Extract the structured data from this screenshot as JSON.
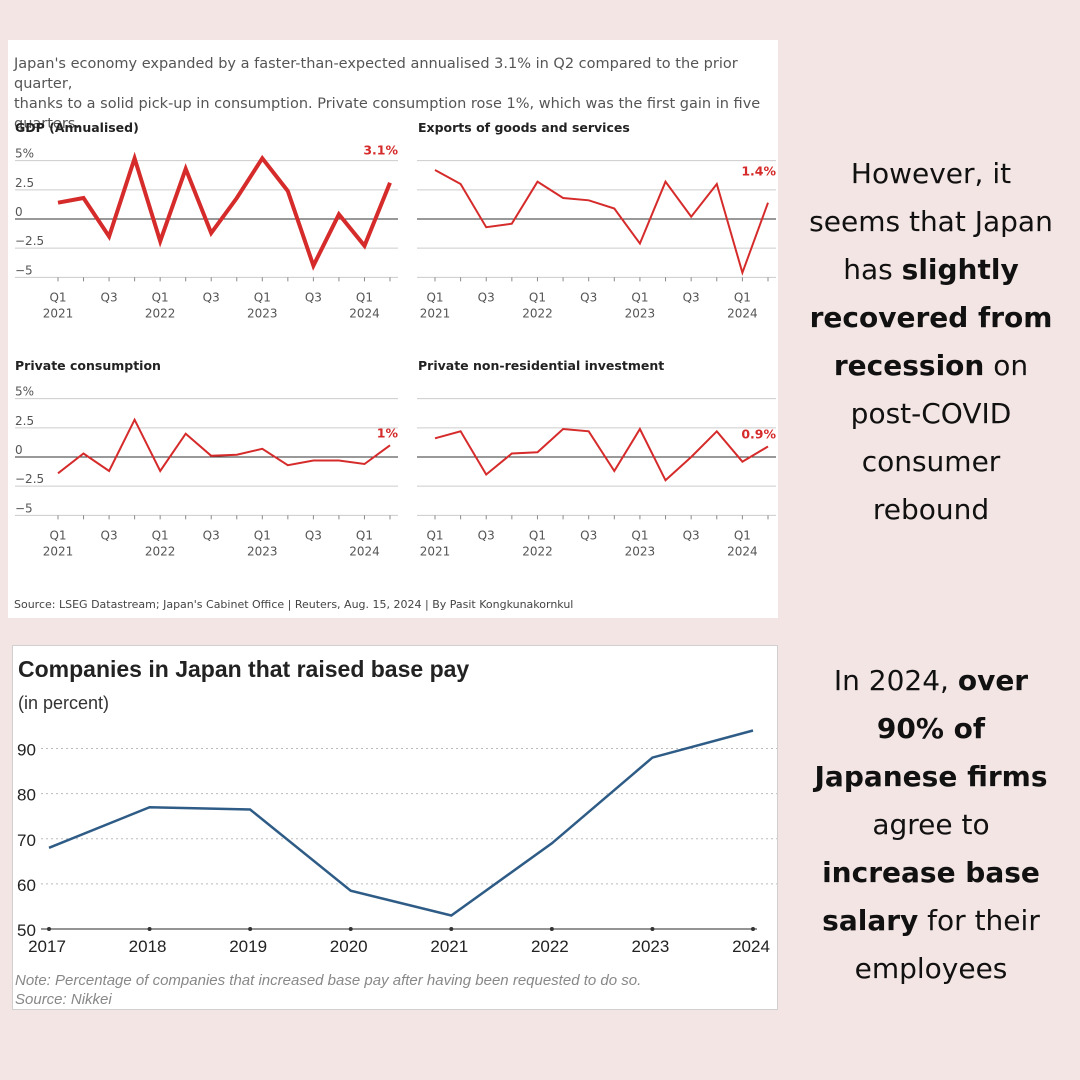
{
  "intro": {
    "line1": "Japan's economy expanded by a faster-than-expected annualised 3.1% in Q2 compared to the prior quarter,",
    "line2": "thanks to a solid pick-up in consumption. Private consumption rose 1%, which was the first gain in five quarters."
  },
  "source_top": "Source: LSEG Datastream; Japan's Cabinet Office | Reuters, Aug. 15, 2024 | By Pasit Kongkunakornkul",
  "side_1": [
    {
      "t": "However, it",
      "b": false
    },
    {
      "t": "seems that Japan",
      "b": false
    },
    {
      "t": "has ",
      "b": false,
      "next": "slightly"
    },
    {
      "t": "recovered from",
      "b": true
    },
    {
      "t": "recession",
      "b": true,
      "after": " on"
    },
    {
      "t": "post-COVID",
      "b": false
    },
    {
      "t": "consumer",
      "b": false
    },
    {
      "t": "rebound",
      "b": false
    }
  ],
  "side_2": [
    {
      "t": "In 2024, ",
      "b": false,
      "next": "over"
    },
    {
      "t": "90% of",
      "b": true
    },
    {
      "t": "Japanese firms",
      "b": true
    },
    {
      "t": "agree to",
      "b": false
    },
    {
      "t": "increase base",
      "b": true
    },
    {
      "t": "salary",
      "b": true,
      "after": " for their"
    },
    {
      "t": "employees",
      "b": false
    }
  ],
  "bottom": {
    "title": "Companies in Japan that raised base pay",
    "subtitle": "(in percent)",
    "note": "Note: Percentage of companies that increased base pay after having been requested to do so.",
    "source": "Source: Nikkei"
  },
  "colors": {
    "red": "#d62b2b",
    "blue": "#2e5c86",
    "background": "#f3e5e3"
  },
  "chart_data": [
    {
      "type": "line",
      "title": "GDP (Annualised)",
      "ylim": [
        -6,
        6
      ],
      "yticks": [
        "5%",
        "2.5",
        "0",
        "−2.5",
        "−5"
      ],
      "ytick_values": [
        5,
        2.5,
        0,
        -2.5,
        -5
      ],
      "x_tick_labels": [
        [
          "Q1",
          "2021"
        ],
        [
          "Q3",
          ""
        ],
        [
          "Q1",
          "2022"
        ],
        [
          "Q3",
          ""
        ],
        [
          "Q1",
          "2023"
        ],
        [
          "Q3",
          ""
        ],
        [
          "Q1",
          "2024"
        ]
      ],
      "values": [
        1.4,
        1.8,
        -1.5,
        5.2,
        -1.9,
        4.3,
        -1.2,
        1.8,
        5.2,
        2.4,
        -4.0,
        0.4,
        -2.3,
        3.1
      ],
      "end_label": "3.1%",
      "thick": true
    },
    {
      "type": "line",
      "title": "Exports of goods and services",
      "ylim": [
        -6,
        6
      ],
      "x_tick_labels": [
        [
          "Q1",
          "2021"
        ],
        [
          "Q3",
          ""
        ],
        [
          "Q1",
          "2022"
        ],
        [
          "Q3",
          ""
        ],
        [
          "Q1",
          "2023"
        ],
        [
          "Q3",
          ""
        ],
        [
          "Q1",
          "2024"
        ]
      ],
      "values": [
        4.2,
        3.0,
        -0.7,
        -0.4,
        3.2,
        1.8,
        1.6,
        0.9,
        -2.1,
        3.2,
        0.2,
        3.0,
        -4.6,
        1.4
      ],
      "end_label": "1.4%",
      "thick": false
    },
    {
      "type": "line",
      "title": "Private consumption",
      "ylim": [
        -6,
        6
      ],
      "yticks": [
        "5%",
        "2.5",
        "0",
        "−2.5",
        "−5"
      ],
      "ytick_values": [
        5,
        2.5,
        0,
        -2.5,
        -5
      ],
      "x_tick_labels": [
        [
          "Q1",
          "2021"
        ],
        [
          "Q3",
          ""
        ],
        [
          "Q1",
          "2022"
        ],
        [
          "Q3",
          ""
        ],
        [
          "Q1",
          "2023"
        ],
        [
          "Q3",
          ""
        ],
        [
          "Q1",
          "2024"
        ]
      ],
      "values": [
        -1.4,
        0.3,
        -1.2,
        3.2,
        -1.2,
        2.0,
        0.1,
        0.2,
        0.7,
        -0.7,
        -0.3,
        -0.3,
        -0.6,
        1.0
      ],
      "end_label": "1%",
      "thick": false
    },
    {
      "type": "line",
      "title": "Private non-residential investment",
      "ylim": [
        -6,
        6
      ],
      "x_tick_labels": [
        [
          "Q1",
          "2021"
        ],
        [
          "Q3",
          ""
        ],
        [
          "Q1",
          "2022"
        ],
        [
          "Q3",
          ""
        ],
        [
          "Q1",
          "2023"
        ],
        [
          "Q3",
          ""
        ],
        [
          "Q1",
          "2024"
        ]
      ],
      "values": [
        1.6,
        2.2,
        -1.5,
        0.3,
        0.4,
        2.4,
        2.2,
        -1.2,
        2.4,
        -2.0,
        0.0,
        2.2,
        -0.4,
        0.9
      ],
      "end_label": "0.9%",
      "thick": false
    },
    {
      "type": "line",
      "title": "Companies in Japan that raised base pay",
      "ylabel": "(in percent)",
      "categories": [
        "2017",
        "2018",
        "2019",
        "2020",
        "2021",
        "2022",
        "2023",
        "2024"
      ],
      "values": [
        68,
        77,
        76.5,
        58.5,
        53,
        69,
        88,
        94
      ],
      "ylim": [
        50,
        95
      ],
      "yticks": [
        90,
        80,
        70,
        60,
        50
      ]
    }
  ]
}
